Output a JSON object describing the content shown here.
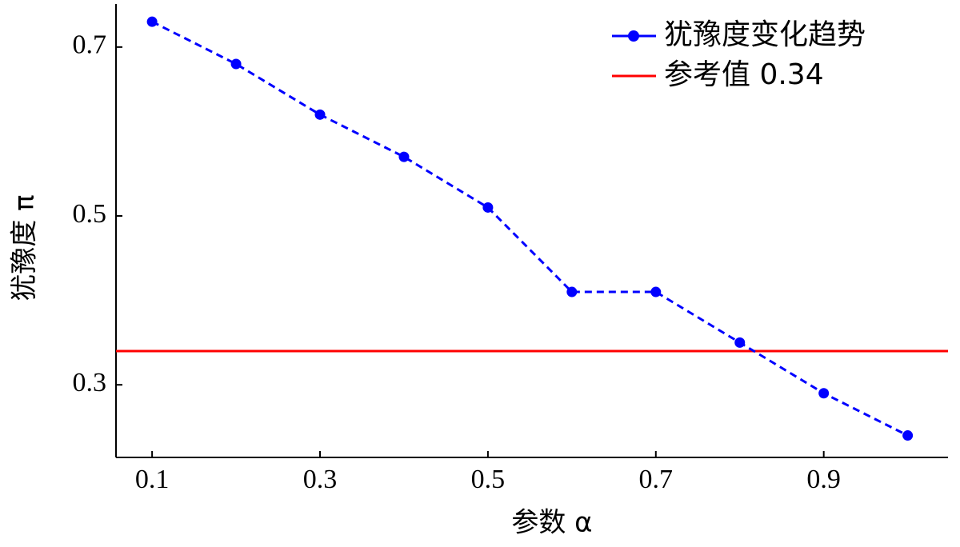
{
  "chart_data": {
    "type": "line",
    "xlabel": "参数 α",
    "ylabel": "犹豫度 π",
    "x": [
      0.1,
      0.2,
      0.3,
      0.4,
      0.5,
      0.6,
      0.7,
      0.8,
      0.9,
      1.0
    ],
    "series": [
      {
        "name": "犹豫度变化趋势",
        "color": "#0000ff",
        "values": [
          0.73,
          0.68,
          0.62,
          0.57,
          0.51,
          0.41,
          0.41,
          0.35,
          0.29,
          0.24
        ]
      }
    ],
    "reference_line": {
      "name": "参考值 0.34",
      "value": 0.34,
      "color": "#ff0000"
    },
    "xlim": [
      0.057,
      1.048
    ],
    "xticks": [
      0.1,
      0.3,
      0.5,
      0.7,
      0.9
    ],
    "ylim": [
      0.214,
      0.751
    ],
    "yticks": [
      0.3,
      0.5,
      0.7
    ],
    "grid": false,
    "legend": "upper right"
  }
}
